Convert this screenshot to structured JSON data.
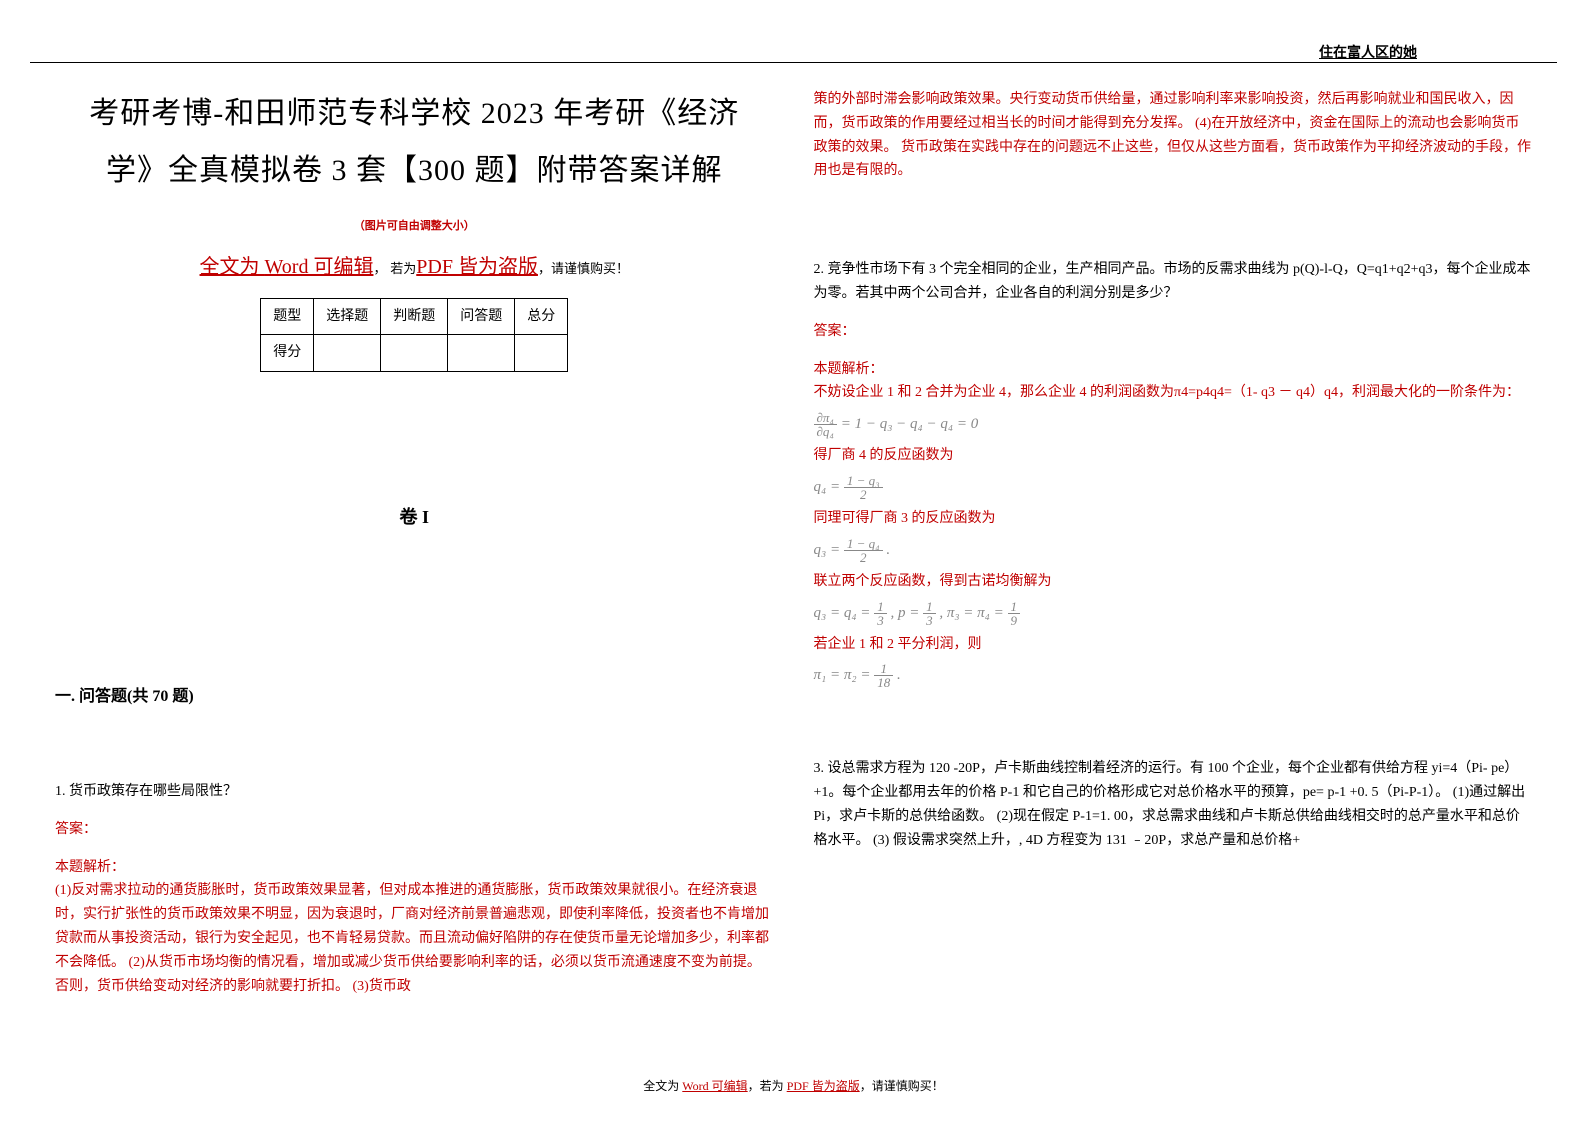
{
  "header": {
    "rightText": "住在富人区的她"
  },
  "leftCol": {
    "titleLine1": "考研考博-和田师范专科学校 2023 年考研《经济",
    "titleLine2": "学》全真模拟卷 3 套【300 题】附带答案详解",
    "imgNote": "（图片可自由调整大小）",
    "wordEditPrefix": "全文为 ",
    "wordEditBig": "Word 可编辑",
    "wordEditComma": "，",
    "wordEditIf": "若为",
    "pdfPirate": "PDF 皆为盗版",
    "wordEditSuffix": "，请谨慎购买！",
    "table": {
      "headers": [
        "题型",
        "选择题",
        "判断题",
        "问答题",
        "总分"
      ],
      "row2": [
        "得分",
        "",
        "",
        "",
        ""
      ]
    },
    "juanLabel": "卷 I",
    "sectionTitle": "一. 问答题(共 70 题)",
    "q1": {
      "num": "1. 货币政策存在哪些局限性？",
      "ansLabel": "答案：",
      "parseLabel": "本题解析：",
      "parseBody": "(1)反对需求拉动的通货膨胀时，货币政策效果显著，但对成本推进的通货膨胀，货币政策效果就很小。在经济衰退时，实行扩张性的货币政策效果不明显，因为衰退时，厂商对经济前景普遍悲观，即使利率降低，投资者也不肯增加贷款而从事投资活动，银行为安全起见，也不肯轻易贷款。而且流动偏好陷阱的存在使货币量无论增加多少，利率都不会降低。 (2)从货币市场均衡的情况看，增加或减少货币供给要影响利率的话，必须以货币流通速度不变为前提。否则，货币供给变动对经济的影响就要打折扣。 (3)货币政"
    }
  },
  "rightCol": {
    "topPara": "策的外部时滞会影响政策效果。央行变动货币供给量，通过影响利率来影响投资，然后再影响就业和国民收入，因而，货币政策的作用要经过相当长的时间才能得到充分发挥。 (4)在开放经济中，资金在国际上的流动也会影响货币政策的效果。 货币政策在实践中存在的问题远不止这些，但仅从这些方面看，货币政策作为平抑经济波动的手段，作用也是有限的。",
    "q2": {
      "num": "2. 竞争性市场下有 3 个完全相同的企业，生产相同产品。市场的反需求曲线为 p(Q)-l-Q，Q=q1+q2+q3，每个企业成本为零。若其中两个公司合并，企业各自的利润分别是多少？",
      "ansLabel": "答案：",
      "parseLabel": "本题解析：",
      "line1": "不妨设企业 1 和 2 合并为企业 4，那么企业 4 的利润函数为π4=p4q4=（1- q3 － q4）q4，利润最大化的一阶条件为：",
      "formula1_lhs_num": "∂π₄",
      "formula1_lhs_den": "∂q₄",
      "formula1_rhs": " = 1 − q₃ − q₄ − q₄ = 0",
      "line2": "得厂商 4 的反应函数为",
      "formula2_lhs": "q₄ = ",
      "formula2_num": "1 − q₃",
      "formula2_den": "2",
      "line3": "同理可得厂商 3 的反应函数为",
      "formula3_lhs": "q₃ = ",
      "formula3_num": "1 − q₄",
      "formula3_den": "2",
      "formula3_tail": " .",
      "line4": "联立两个反应函数，得到古诺均衡解为",
      "formula4_a": "q₃ = q₄ = ",
      "formula4_b": " , p = ",
      "formula4_c": " , π₃ = π₄ = ",
      "f13n": "1",
      "f13d": "3",
      "f19n": "1",
      "f19d": "9",
      "line5": " 若企业 1 和 2 平分利润，则",
      "formula5_lhs": "π₁ = π₂ = ",
      "f118n": "1",
      "f118d": "18",
      "formula5_tail": " ."
    },
    "q3": {
      "num": "3. 设总需求方程为 120 -20P，卢卡斯曲线控制着经济的运行。有 100 个企业，每个企业都有供给方程 yi=4（Pi- pe）+1。每个企业都用去年的价格 P-1 和它自己的价格形成它对总价格水平的预算，pe= p-1 +0. 5（Pi-P-1）。 (1)通过解出 Pi，求卢卡斯的总供给函数。 (2)现在假定 P-1=1. 00，求总需求曲线和卢卡斯总供给曲线相交时的总产量水平和总价格水平。 (3) 假设需求突然上升，, 4D 方程变为 131 ﹣20P，求总产量和总价格+"
    }
  },
  "footer": {
    "p1": "全文为 ",
    "p2": "Word 可编辑",
    "p3": "，若为 ",
    "p4": "PDF 皆为盗版",
    "p5": "，请谨慎购买！"
  }
}
